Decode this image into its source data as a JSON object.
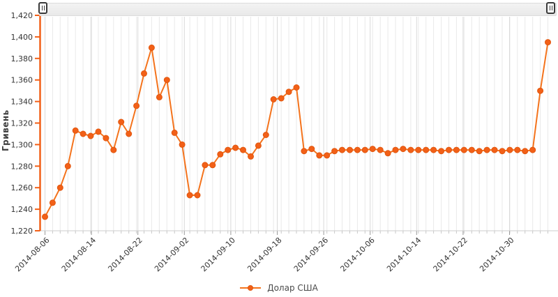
{
  "range_selector": {
    "left_handle_icon": "pause-bars",
    "right_handle_icon": "pause-bars",
    "selected_range": "full"
  },
  "legend": {
    "label": "Долар США",
    "position": "bottom-center"
  },
  "colors": {
    "series": "#f26018",
    "series_line": "#f4731c",
    "marker_stroke": "#e1560d",
    "y_axis": "#f26018",
    "grid_minor": "#e9e9e9",
    "grid_major": "#d9d9d9",
    "axis_line": "#cccccc",
    "text": "#333333"
  },
  "chart_data": {
    "type": "line",
    "title": "",
    "xlabel": "",
    "ylabel": "Гривень",
    "ylim": [
      1220,
      1420
    ],
    "y_tick_step": 20,
    "grid": "vertical-only",
    "legend_position": "bottom-center",
    "marker": "circle",
    "y_ticks": [
      1220,
      1240,
      1260,
      1280,
      1300,
      1320,
      1340,
      1360,
      1380,
      1400,
      1420
    ],
    "y_tick_labels": [
      "1,220",
      "1,240",
      "1,260",
      "1,280",
      "1,300",
      "1,320",
      "1,340",
      "1,360",
      "1,380",
      "1,400",
      "1,420"
    ],
    "x_tick_labels": [
      "2014-08-06",
      "2014-08-14",
      "2014-08-22",
      "2014-09-02",
      "2014-09-10",
      "2014-09-18",
      "2014-09-26",
      "2014-10-06",
      "2014-10-14",
      "2014-10-22",
      "2014-10-30"
    ],
    "series": [
      {
        "name": "Долар США",
        "color": "#f26018",
        "values": [
          1233,
          1246,
          1260,
          1280,
          1313,
          1310,
          1308,
          1312,
          1306,
          1295,
          1321,
          1310,
          1336,
          1366,
          1390,
          1344,
          1360,
          1311,
          1300,
          1253,
          1253,
          1281,
          1281,
          1291,
          1295,
          1297,
          1295,
          1289,
          1299,
          1309,
          1342,
          1343,
          1349,
          1353,
          1294,
          1296,
          1290,
          1290,
          1294,
          1295,
          1295,
          1295,
          1295,
          1296,
          1295,
          1292,
          1295,
          1296,
          1295,
          1295,
          1295,
          1295,
          1294,
          1295,
          1295,
          1295,
          1295,
          1294,
          1295,
          1295,
          1294,
          1295,
          1295,
          1294,
          1295,
          1350,
          1395
        ]
      }
    ]
  }
}
